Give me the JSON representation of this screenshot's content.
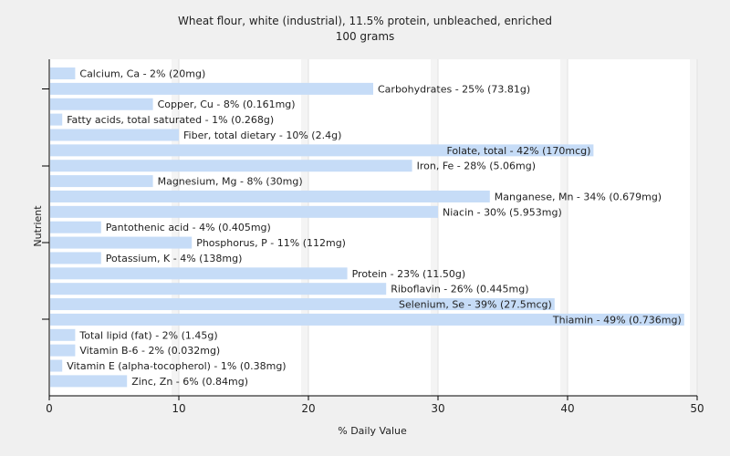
{
  "chart_data": {
    "type": "bar",
    "orientation": "horizontal",
    "title": "Wheat flour, white (industrial), 11.5% protein, unbleached, enriched",
    "subtitle": "100 grams",
    "xlabel": "% Daily Value",
    "ylabel": "Nutrient",
    "xlim": [
      0,
      50
    ],
    "xticks": [
      0,
      10,
      20,
      30,
      40,
      50
    ],
    "grid": true,
    "bar_color": "#c6dcf7",
    "categories": [
      "Calcium, Ca - 2% (20mg)",
      "Carbohydrates - 25% (73.81g)",
      "Copper, Cu - 8% (0.161mg)",
      "Fatty acids, total saturated - 1% (0.268g)",
      "Fiber, total dietary - 10% (2.4g)",
      "Folate, total - 42% (170mcg)",
      "Iron, Fe - 28% (5.06mg)",
      "Magnesium, Mg - 8% (30mg)",
      "Manganese, Mn - 34% (0.679mg)",
      "Niacin - 30% (5.953mg)",
      "Pantothenic acid - 4% (0.405mg)",
      "Phosphorus, P - 11% (112mg)",
      "Potassium, K - 4% (138mg)",
      "Protein - 23% (11.50g)",
      "Riboflavin - 26% (0.445mg)",
      "Selenium, Se - 39% (27.5mcg)",
      "Thiamin - 49% (0.736mg)",
      "Total lipid (fat) - 2% (1.45g)",
      "Vitamin B-6 - 2% (0.032mg)",
      "Vitamin E (alpha-tocopherol) - 1% (0.38mg)",
      "Zinc, Zn - 6% (0.84mg)"
    ],
    "values": [
      2,
      25,
      8,
      1,
      10,
      42,
      28,
      8,
      34,
      30,
      4,
      11,
      4,
      23,
      26,
      39,
      49,
      2,
      2,
      1,
      6
    ]
  }
}
